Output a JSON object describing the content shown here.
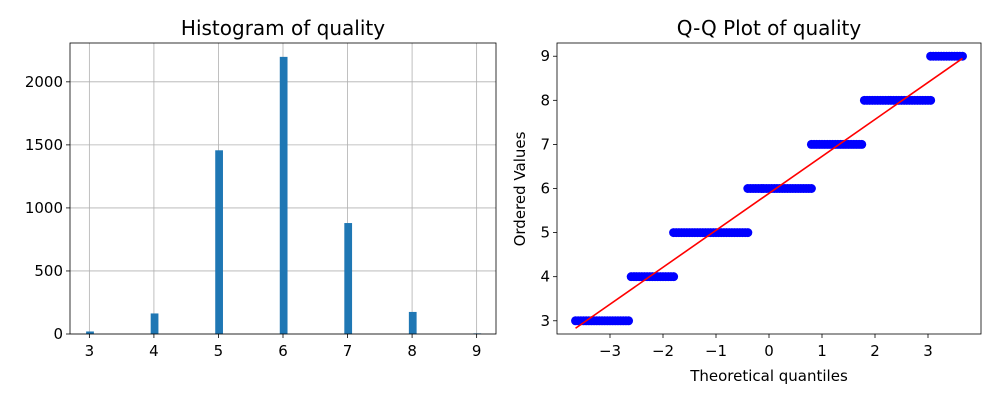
{
  "chart_data": [
    {
      "type": "bar",
      "title": "Histogram of quality",
      "xlabel": "",
      "ylabel": "",
      "categories": [
        3,
        4,
        5,
        6,
        7,
        8,
        9
      ],
      "values": [
        20,
        163,
        1457,
        2198,
        880,
        175,
        5
      ],
      "xlim": [
        2.7,
        9.3
      ],
      "ylim": [
        0,
        2308
      ],
      "xticks": [
        3,
        4,
        5,
        6,
        7,
        8,
        9
      ],
      "yticks": [
        0,
        500,
        1000,
        1500,
        2000
      ],
      "grid": true,
      "color": "#1f77b4"
    },
    {
      "type": "scatter",
      "title": "Q-Q Plot of quality",
      "xlabel": "Theoretical quantiles",
      "ylabel": "Ordered Values",
      "xlim": [
        -4.0,
        4.0
      ],
      "ylim": [
        2.7,
        9.3
      ],
      "xticks": [
        -3,
        -2,
        -1,
        0,
        1,
        2,
        3
      ],
      "yticks": [
        3,
        4,
        5,
        6,
        7,
        8,
        9
      ],
      "grid": false,
      "point_color": "#0000ff",
      "line_color": "#ff0000",
      "fit_line": {
        "x": [
          -3.65,
          3.65
        ],
        "y": [
          2.83,
          8.95
        ]
      },
      "segments": [
        {
          "value": 3,
          "x_from": -3.65,
          "x_to": -2.65
        },
        {
          "value": 4,
          "x_from": -2.6,
          "x_to": -1.8
        },
        {
          "value": 5,
          "x_from": -1.8,
          "x_to": -0.4
        },
        {
          "value": 6,
          "x_from": -0.4,
          "x_to": 0.8
        },
        {
          "value": 7,
          "x_from": 0.8,
          "x_to": 1.75
        },
        {
          "value": 8,
          "x_from": 1.8,
          "x_to": 3.05
        },
        {
          "value": 9,
          "x_from": 3.05,
          "x_to": 3.65
        }
      ]
    }
  ]
}
